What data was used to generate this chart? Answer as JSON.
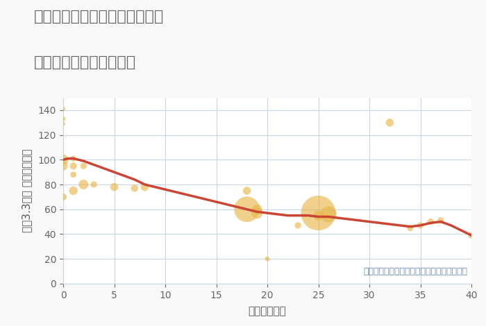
{
  "title_line1": "愛知県名古屋市中川区押元町の",
  "title_line2": "築年数別中古戸建て価格",
  "xlabel": "築年数（年）",
  "ylabel": "坪（3.3㎡） 単価（万円）",
  "annotation": "円の大きさは、取引のあった物件面積を示す",
  "bg_color": "#f8f8f8",
  "plot_bg_color": "#ffffff",
  "grid_color": "#c8d4e8",
  "title_color": "#666666",
  "line_color": "#cc4433",
  "bubble_color": "#e8b84b",
  "bubble_alpha": 0.65,
  "xlim": [
    0,
    40
  ],
  "ylim": [
    0,
    150
  ],
  "xticks": [
    0,
    5,
    10,
    15,
    20,
    25,
    30,
    35,
    40
  ],
  "yticks": [
    0,
    20,
    40,
    60,
    80,
    100,
    120,
    140
  ],
  "scatter_x": [
    0,
    0,
    0,
    0,
    0,
    0,
    1,
    1,
    1,
    1,
    2,
    2,
    3,
    5,
    7,
    8,
    18,
    18,
    19,
    19,
    20,
    23,
    25,
    25,
    26,
    32,
    34,
    35,
    36,
    37,
    40
  ],
  "scatter_y": [
    141,
    133,
    129,
    100,
    95,
    70,
    101,
    95,
    88,
    75,
    95,
    80,
    80,
    78,
    77,
    78,
    75,
    60,
    57,
    60,
    20,
    47,
    57,
    55,
    56,
    130,
    45,
    47,
    50,
    51,
    39
  ],
  "scatter_size": [
    18,
    22,
    18,
    120,
    90,
    55,
    35,
    55,
    40,
    80,
    45,
    100,
    45,
    70,
    55,
    70,
    70,
    700,
    140,
    110,
    25,
    45,
    1300,
    110,
    280,
    70,
    45,
    45,
    45,
    45,
    45
  ],
  "line_x": [
    0,
    0.5,
    1,
    1.5,
    2,
    3,
    4,
    5,
    6,
    7,
    8,
    9,
    10,
    11,
    12,
    13,
    14,
    15,
    16,
    17,
    18,
    19,
    20,
    21,
    22,
    23,
    24,
    25,
    26,
    27,
    28,
    29,
    30,
    31,
    32,
    33,
    34,
    35,
    36,
    37,
    38,
    39,
    40
  ],
  "line_y": [
    100,
    101,
    101,
    100,
    99,
    96,
    93,
    90,
    87,
    84,
    80,
    78,
    76,
    74,
    72,
    70,
    68,
    66,
    64,
    62,
    60,
    58,
    57,
    56,
    55,
    55,
    55,
    54,
    54,
    53,
    52,
    51,
    50,
    49,
    48,
    47,
    46,
    47,
    49,
    50,
    47,
    43,
    39
  ],
  "title_fontsize": 16,
  "axis_label_fontsize": 11,
  "tick_fontsize": 10,
  "annotation_fontsize": 9
}
